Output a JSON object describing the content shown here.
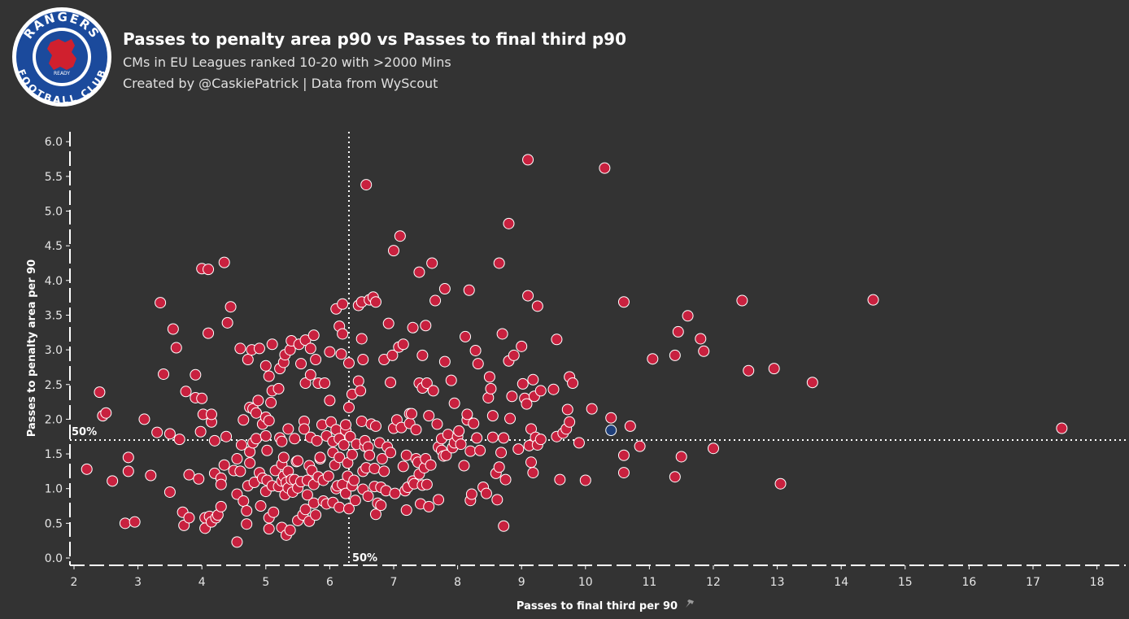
{
  "header": {
    "title": "Passes to penalty area p90 vs Passes to final third p90",
    "subtitle1": "CMs in EU Leagues ranked 10-20 with >2000 Mins",
    "subtitle2": "Created by @CaskiePatrick | Data from WyScout"
  },
  "logo": {
    "top_text": "RANGERS",
    "bottom_text": "FOOTBALL CLUB",
    "motto": "READY"
  },
  "colors": {
    "background": "#333333",
    "point": "#c8213f",
    "highlight": "#1f3f7a",
    "point_stroke": "#ffffff"
  },
  "chart_data": {
    "type": "scatter",
    "xlabel": "Passes to final third per 90",
    "ylabel": "Passes to penalty area per 90",
    "xlim": [
      2,
      18.5
    ],
    "ylim": [
      0,
      6.1
    ],
    "xticks": [
      2,
      3,
      4,
      5,
      6,
      7,
      8,
      9,
      10,
      11,
      12,
      13,
      14,
      15,
      16,
      17,
      18
    ],
    "yticks": [
      0.0,
      0.5,
      1.0,
      1.5,
      2.0,
      2.5,
      3.0,
      3.5,
      4.0,
      4.5,
      5.0,
      5.5,
      6.0
    ],
    "median_x": 6.3,
    "median_y": 1.7,
    "median_label": "50%",
    "grid": false,
    "highlight": [
      10.4,
      1.84
    ],
    "points": [
      [
        2.2,
        1.28
      ],
      [
        2.4,
        2.39
      ],
      [
        2.45,
        2.05
      ],
      [
        2.5,
        2.09
      ],
      [
        2.6,
        1.11
      ],
      [
        2.8,
        0.5
      ],
      [
        2.85,
        1.45
      ],
      [
        2.85,
        1.25
      ],
      [
        2.95,
        0.52
      ],
      [
        3.1,
        2.0
      ],
      [
        3.2,
        1.19
      ],
      [
        3.3,
        1.81
      ],
      [
        3.35,
        3.68
      ],
      [
        3.4,
        2.65
      ],
      [
        3.5,
        0.95
      ],
      [
        3.5,
        1.79
      ],
      [
        3.55,
        3.3
      ],
      [
        3.6,
        3.03
      ],
      [
        3.65,
        1.71
      ],
      [
        3.7,
        0.66
      ],
      [
        3.72,
        0.47
      ],
      [
        3.75,
        2.4
      ],
      [
        3.8,
        0.58
      ],
      [
        3.8,
        1.2
      ],
      [
        3.9,
        2.64
      ],
      [
        3.9,
        2.31
      ],
      [
        3.95,
        1.14
      ],
      [
        3.98,
        1.82
      ],
      [
        4.0,
        2.3
      ],
      [
        4.0,
        4.17
      ],
      [
        4.02,
        2.07
      ],
      [
        4.05,
        0.43
      ],
      [
        4.05,
        0.58
      ],
      [
        4.1,
        3.24
      ],
      [
        4.1,
        4.16
      ],
      [
        4.12,
        0.6
      ],
      [
        4.15,
        0.52
      ],
      [
        4.15,
        1.96
      ],
      [
        4.15,
        2.07
      ],
      [
        4.2,
        1.22
      ],
      [
        4.2,
        1.69
      ],
      [
        4.22,
        0.58
      ],
      [
        4.25,
        0.62
      ],
      [
        4.3,
        0.74
      ],
      [
        4.3,
        1.15
      ],
      [
        4.3,
        1.06
      ],
      [
        4.35,
        1.34
      ],
      [
        4.35,
        4.26
      ],
      [
        4.38,
        1.75
      ],
      [
        4.4,
        3.39
      ],
      [
        4.45,
        3.62
      ],
      [
        4.5,
        1.26
      ],
      [
        4.55,
        1.43
      ],
      [
        4.55,
        0.23
      ],
      [
        4.55,
        0.92
      ],
      [
        4.6,
        1.25
      ],
      [
        4.6,
        3.02
      ],
      [
        4.62,
        1.63
      ],
      [
        4.65,
        1.99
      ],
      [
        4.65,
        0.82
      ],
      [
        4.7,
        0.49
      ],
      [
        4.7,
        0.68
      ],
      [
        4.72,
        1.04
      ],
      [
        4.72,
        2.86
      ],
      [
        4.75,
        1.53
      ],
      [
        4.75,
        1.37
      ],
      [
        4.75,
        2.17
      ],
      [
        4.78,
        3.0
      ],
      [
        4.8,
        2.15
      ],
      [
        4.8,
        1.66
      ],
      [
        4.82,
        1.09
      ],
      [
        4.85,
        1.72
      ],
      [
        4.85,
        2.09
      ],
      [
        4.88,
        2.27
      ],
      [
        4.9,
        3.02
      ],
      [
        4.9,
        1.23
      ],
      [
        4.92,
        0.75
      ],
      [
        4.95,
        1.93
      ],
      [
        4.95,
        1.15
      ],
      [
        5.0,
        0.96
      ],
      [
        5.0,
        2.03
      ],
      [
        5.0,
        1.76
      ],
      [
        5.0,
        2.77
      ],
      [
        5.02,
        1.12
      ],
      [
        5.02,
        1.55
      ],
      [
        5.05,
        0.42
      ],
      [
        5.05,
        0.58
      ],
      [
        5.05,
        1.98
      ],
      [
        5.05,
        2.62
      ],
      [
        5.08,
        2.24
      ],
      [
        5.1,
        1.04
      ],
      [
        5.1,
        3.08
      ],
      [
        5.1,
        2.41
      ],
      [
        5.12,
        0.66
      ],
      [
        5.15,
        1.26
      ],
      [
        5.2,
        1.03
      ],
      [
        5.2,
        2.44
      ],
      [
        5.22,
        1.73
      ],
      [
        5.22,
        2.73
      ],
      [
        5.25,
        1.11
      ],
      [
        5.25,
        0.44
      ],
      [
        5.25,
        1.35
      ],
      [
        5.25,
        1.68
      ],
      [
        5.28,
        1.18
      ],
      [
        5.28,
        1.45
      ],
      [
        5.28,
        2.82
      ],
      [
        5.3,
        0.91
      ],
      [
        5.3,
        2.93
      ],
      [
        5.32,
        1.09
      ],
      [
        5.32,
        0.33
      ],
      [
        5.35,
        1.86
      ],
      [
        5.35,
        1.25
      ],
      [
        5.35,
        1.01
      ],
      [
        5.38,
        3.0
      ],
      [
        5.38,
        0.4
      ],
      [
        5.4,
        1.13
      ],
      [
        5.4,
        3.13
      ],
      [
        5.42,
        0.95
      ],
      [
        5.45,
        1.13
      ],
      [
        5.45,
        1.72
      ],
      [
        5.48,
        1.39
      ],
      [
        5.5,
        0.54
      ],
      [
        5.5,
        1.4
      ],
      [
        5.5,
        1.01
      ],
      [
        5.52,
        3.08
      ],
      [
        5.55,
        1.1
      ],
      [
        5.55,
        2.8
      ],
      [
        5.58,
        0.62
      ],
      [
        5.6,
        1.97
      ],
      [
        5.6,
        1.86
      ],
      [
        5.62,
        0.7
      ],
      [
        5.62,
        2.52
      ],
      [
        5.62,
        3.14
      ],
      [
        5.65,
        1.12
      ],
      [
        5.65,
        0.91
      ],
      [
        5.68,
        0.53
      ],
      [
        5.68,
        1.33
      ],
      [
        5.7,
        3.02
      ],
      [
        5.7,
        1.74
      ],
      [
        5.7,
        2.64
      ],
      [
        5.72,
        1.26
      ],
      [
        5.75,
        0.79
      ],
      [
        5.75,
        1.06
      ],
      [
        5.75,
        3.21
      ],
      [
        5.78,
        0.62
      ],
      [
        5.78,
        2.86
      ],
      [
        5.8,
        1.69
      ],
      [
        5.82,
        1.17
      ],
      [
        5.82,
        2.52
      ],
      [
        5.85,
        1.43
      ],
      [
        5.85,
        1.45
      ],
      [
        5.88,
        1.92
      ],
      [
        5.9,
        0.82
      ],
      [
        5.9,
        1.12
      ],
      [
        5.92,
        2.52
      ],
      [
        5.95,
        0.78
      ],
      [
        5.95,
        1.76
      ],
      [
        5.98,
        1.18
      ],
      [
        6.0,
        2.97
      ],
      [
        6.0,
        2.27
      ],
      [
        6.02,
        1.96
      ],
      [
        6.05,
        1.52
      ],
      [
        6.05,
        1.68
      ],
      [
        6.05,
        0.8
      ],
      [
        6.08,
        1.34
      ],
      [
        6.1,
        1.0
      ],
      [
        6.1,
        3.59
      ],
      [
        6.1,
        1.85
      ],
      [
        6.12,
        1.04
      ],
      [
        6.15,
        0.73
      ],
      [
        6.15,
        1.45
      ],
      [
        6.15,
        1.72
      ],
      [
        6.15,
        3.34
      ],
      [
        6.18,
        2.94
      ],
      [
        6.2,
        3.66
      ],
      [
        6.2,
        1.06
      ],
      [
        6.2,
        3.23
      ],
      [
        6.22,
        1.63
      ],
      [
        6.25,
        0.93
      ],
      [
        6.25,
        1.84
      ],
      [
        6.25,
        1.92
      ],
      [
        6.28,
        1.37
      ],
      [
        6.28,
        1.18
      ],
      [
        6.3,
        0.71
      ],
      [
        6.3,
        2.17
      ],
      [
        6.3,
        2.81
      ],
      [
        6.32,
        1.75
      ],
      [
        6.35,
        2.36
      ],
      [
        6.35,
        1.49
      ],
      [
        6.35,
        1.04
      ],
      [
        6.38,
        1.12
      ],
      [
        6.4,
        0.83
      ],
      [
        6.42,
        1.64
      ],
      [
        6.45,
        3.64
      ],
      [
        6.45,
        2.55
      ],
      [
        6.48,
        2.41
      ],
      [
        6.5,
        3.69
      ],
      [
        6.5,
        3.16
      ],
      [
        6.5,
        1.97
      ],
      [
        6.52,
        1.25
      ],
      [
        6.52,
        2.86
      ],
      [
        6.52,
        0.99
      ],
      [
        6.55,
        1.61
      ],
      [
        6.55,
        1.69
      ],
      [
        6.57,
        5.38
      ],
      [
        6.57,
        1.3
      ],
      [
        6.6,
        0.89
      ],
      [
        6.6,
        1.6
      ],
      [
        6.62,
        3.72
      ],
      [
        6.62,
        1.48
      ],
      [
        6.65,
        1.93
      ],
      [
        6.68,
        3.76
      ],
      [
        6.7,
        1.03
      ],
      [
        6.7,
        1.29
      ],
      [
        6.72,
        0.63
      ],
      [
        6.72,
        1.9
      ],
      [
        6.72,
        3.69
      ],
      [
        6.75,
        0.79
      ],
      [
        6.78,
        1.66
      ],
      [
        6.8,
        1.02
      ],
      [
        6.8,
        0.76
      ],
      [
        6.82,
        1.43
      ],
      [
        6.85,
        1.25
      ],
      [
        6.85,
        2.86
      ],
      [
        6.88,
        0.97
      ],
      [
        6.9,
        1.6
      ],
      [
        6.92,
        3.38
      ],
      [
        6.95,
        2.53
      ],
      [
        6.95,
        1.52
      ],
      [
        6.98,
        2.92
      ],
      [
        7.0,
        4.43
      ],
      [
        7.0,
        1.87
      ],
      [
        7.02,
        0.93
      ],
      [
        7.05,
        1.99
      ],
      [
        7.08,
        3.04
      ],
      [
        7.1,
        4.64
      ],
      [
        7.12,
        1.88
      ],
      [
        7.15,
        3.08
      ],
      [
        7.15,
        1.32
      ],
      [
        7.18,
        0.97
      ],
      [
        7.2,
        0.69
      ],
      [
        7.2,
        1.48
      ],
      [
        7.22,
        1.02
      ],
      [
        7.25,
        2.08
      ],
      [
        7.25,
        1.94
      ],
      [
        7.28,
        2.08
      ],
      [
        7.3,
        1.11
      ],
      [
        7.3,
        3.32
      ],
      [
        7.32,
        1.07
      ],
      [
        7.35,
        1.43
      ],
      [
        7.35,
        1.85
      ],
      [
        7.38,
        1.38
      ],
      [
        7.4,
        4.12
      ],
      [
        7.4,
        2.52
      ],
      [
        7.4,
        1.21
      ],
      [
        7.42,
        0.78
      ],
      [
        7.45,
        1.05
      ],
      [
        7.45,
        2.45
      ],
      [
        7.45,
        2.92
      ],
      [
        7.48,
        1.3
      ],
      [
        7.5,
        3.35
      ],
      [
        7.5,
        1.43
      ],
      [
        7.52,
        2.52
      ],
      [
        7.52,
        1.06
      ],
      [
        7.55,
        2.05
      ],
      [
        7.55,
        0.74
      ],
      [
        7.58,
        1.34
      ],
      [
        7.6,
        4.25
      ],
      [
        7.62,
        2.41
      ],
      [
        7.65,
        3.71
      ],
      [
        7.68,
        1.93
      ],
      [
        7.7,
        1.6
      ],
      [
        7.7,
        0.84
      ],
      [
        7.75,
        1.55
      ],
      [
        7.75,
        1.72
      ],
      [
        7.78,
        1.47
      ],
      [
        7.8,
        3.88
      ],
      [
        7.8,
        2.83
      ],
      [
        7.82,
        1.48
      ],
      [
        7.85,
        1.78
      ],
      [
        7.9,
        2.56
      ],
      [
        7.92,
        1.59
      ],
      [
        7.95,
        2.23
      ],
      [
        7.95,
        1.66
      ],
      [
        8.0,
        1.75
      ],
      [
        8.02,
        1.83
      ],
      [
        8.05,
        1.64
      ],
      [
        8.1,
        1.33
      ],
      [
        8.12,
        3.19
      ],
      [
        8.15,
        1.99
      ],
      [
        8.15,
        2.07
      ],
      [
        8.18,
        3.86
      ],
      [
        8.2,
        1.54
      ],
      [
        8.2,
        0.83
      ],
      [
        8.22,
        0.92
      ],
      [
        8.25,
        1.94
      ],
      [
        8.28,
        2.99
      ],
      [
        8.3,
        1.73
      ],
      [
        8.32,
        2.8
      ],
      [
        8.35,
        1.55
      ],
      [
        8.4,
        1.02
      ],
      [
        8.45,
        0.93
      ],
      [
        8.48,
        2.31
      ],
      [
        8.5,
        2.61
      ],
      [
        8.52,
        2.44
      ],
      [
        8.55,
        2.05
      ],
      [
        8.55,
        1.74
      ],
      [
        8.6,
        1.22
      ],
      [
        8.62,
        0.84
      ],
      [
        8.65,
        4.25
      ],
      [
        8.65,
        1.31
      ],
      [
        8.68,
        1.52
      ],
      [
        8.7,
        3.23
      ],
      [
        8.72,
        0.46
      ],
      [
        8.72,
        1.73
      ],
      [
        8.75,
        1.13
      ],
      [
        8.8,
        2.84
      ],
      [
        8.8,
        4.82
      ],
      [
        8.82,
        2.01
      ],
      [
        8.85,
        2.33
      ],
      [
        8.88,
        2.92
      ],
      [
        8.95,
        1.57
      ],
      [
        9.0,
        3.05
      ],
      [
        9.02,
        2.51
      ],
      [
        9.05,
        2.3
      ],
      [
        9.08,
        2.22
      ],
      [
        9.1,
        5.74
      ],
      [
        9.1,
        3.78
      ],
      [
        9.12,
        1.62
      ],
      [
        9.15,
        1.38
      ],
      [
        9.15,
        1.86
      ],
      [
        9.18,
        2.57
      ],
      [
        9.18,
        1.23
      ],
      [
        9.2,
        2.33
      ],
      [
        9.22,
        1.74
      ],
      [
        9.25,
        3.63
      ],
      [
        9.25,
        1.63
      ],
      [
        9.3,
        2.41
      ],
      [
        9.3,
        1.71
      ],
      [
        9.5,
        2.43
      ],
      [
        9.55,
        3.15
      ],
      [
        9.55,
        1.75
      ],
      [
        9.6,
        1.13
      ],
      [
        9.65,
        1.8
      ],
      [
        9.7,
        1.86
      ],
      [
        9.72,
        2.14
      ],
      [
        9.75,
        1.96
      ],
      [
        9.75,
        2.61
      ],
      [
        9.8,
        2.52
      ],
      [
        9.9,
        1.66
      ],
      [
        10.0,
        1.12
      ],
      [
        10.1,
        2.15
      ],
      [
        10.3,
        5.62
      ],
      [
        10.4,
        2.02
      ],
      [
        10.6,
        1.48
      ],
      [
        10.6,
        1.23
      ],
      [
        10.6,
        3.69
      ],
      [
        10.7,
        1.9
      ],
      [
        10.85,
        1.61
      ],
      [
        11.05,
        2.87
      ],
      [
        11.4,
        1.17
      ],
      [
        11.4,
        2.92
      ],
      [
        11.45,
        3.26
      ],
      [
        11.5,
        1.46
      ],
      [
        11.6,
        3.49
      ],
      [
        11.8,
        3.16
      ],
      [
        11.85,
        2.98
      ],
      [
        12.0,
        1.58
      ],
      [
        12.45,
        3.71
      ],
      [
        12.55,
        2.7
      ],
      [
        12.95,
        2.73
      ],
      [
        13.05,
        1.07
      ],
      [
        13.55,
        2.53
      ],
      [
        14.5,
        3.72
      ],
      [
        17.45,
        1.87
      ]
    ]
  }
}
